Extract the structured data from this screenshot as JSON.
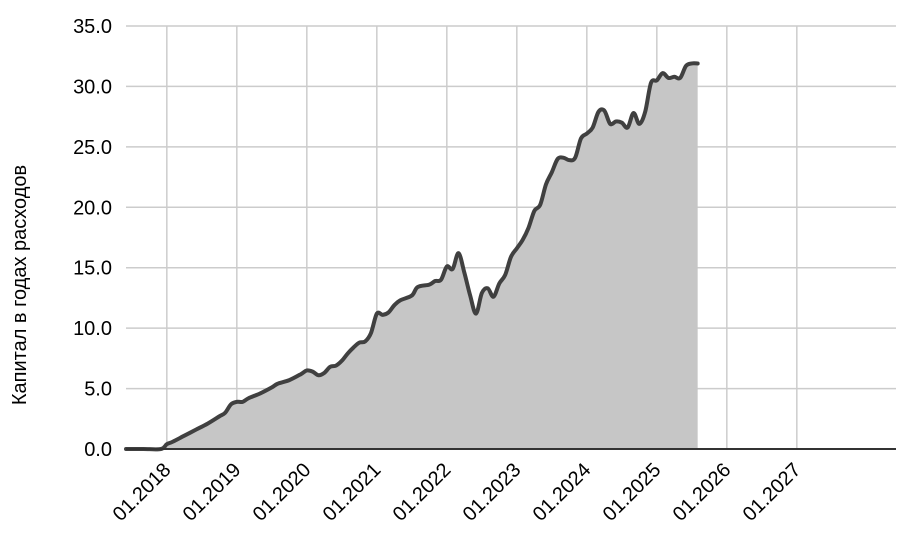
{
  "chart_data": {
    "type": "area",
    "title": "",
    "xlabel": "",
    "ylabel": "Капитал в годах расходов",
    "x_tick_labels": [
      "01.2018",
      "01.2019",
      "01.2020",
      "01.2021",
      "01.2022",
      "01.2023",
      "01.2024",
      "01.2025",
      "01.2026",
      "01.2027"
    ],
    "y_tick_labels": [
      "0.0",
      "5.0",
      "10.0",
      "15.0",
      "20.0",
      "25.0",
      "30.0",
      "35.0"
    ],
    "xlim": [
      "2017-06",
      "2028-06"
    ],
    "ylim": [
      0,
      35
    ],
    "grid": true,
    "legend": "none",
    "colors": {
      "fill": "#c6c6c6",
      "line": "#404040",
      "grid": "#cccccc",
      "axis": "#333333"
    },
    "series": [
      {
        "x": [
          "2017-06",
          "2017-09",
          "2017-12",
          "2018-01",
          "2018-02",
          "2018-04",
          "2018-06",
          "2018-08",
          "2018-10",
          "2018-11",
          "2018-12",
          "2019-01",
          "2019-02",
          "2019-03",
          "2019-05",
          "2019-07",
          "2019-08",
          "2019-10",
          "2019-12",
          "2020-01",
          "2020-02",
          "2020-03",
          "2020-04",
          "2020-05",
          "2020-06",
          "2020-07",
          "2020-08",
          "2020-09",
          "2020-10",
          "2020-11",
          "2020-12",
          "2021-01",
          "2021-02",
          "2021-03",
          "2021-04",
          "2021-05",
          "2021-07",
          "2021-08",
          "2021-10",
          "2021-11",
          "2021-12",
          "2022-01",
          "2022-02",
          "2022-03",
          "2022-04",
          "2022-05",
          "2022-06",
          "2022-07",
          "2022-08",
          "2022-09",
          "2022-10",
          "2022-11",
          "2022-12",
          "2023-01",
          "2023-02",
          "2023-03",
          "2023-04",
          "2023-05",
          "2023-06",
          "2023-07",
          "2023-08",
          "2023-09",
          "2023-10",
          "2023-11",
          "2023-12",
          "2024-01",
          "2024-02",
          "2024-03",
          "2024-04",
          "2024-05",
          "2024-06",
          "2024-07",
          "2024-08",
          "2024-09",
          "2024-10",
          "2024-11",
          "2024-12",
          "2025-01",
          "2025-02",
          "2025-03",
          "2025-04",
          "2025-05",
          "2025-06",
          "2025-07",
          "2025-08"
        ],
        "values": [
          0.0,
          0.0,
          0.0,
          0.4,
          0.6,
          1.1,
          1.6,
          2.1,
          2.7,
          3.0,
          3.7,
          3.9,
          3.9,
          4.2,
          4.6,
          5.1,
          5.4,
          5.7,
          6.2,
          6.5,
          6.4,
          6.1,
          6.3,
          6.8,
          6.9,
          7.3,
          7.9,
          8.4,
          8.8,
          8.9,
          9.6,
          11.2,
          11.1,
          11.3,
          11.9,
          12.3,
          12.7,
          13.4,
          13.6,
          13.9,
          14.0,
          15.1,
          14.9,
          16.2,
          14.6,
          12.7,
          11.2,
          12.9,
          13.3,
          12.6,
          13.7,
          14.4,
          15.9,
          16.6,
          17.3,
          18.3,
          19.7,
          20.2,
          21.9,
          22.9,
          24.0,
          24.1,
          23.9,
          24.1,
          25.7,
          26.1,
          26.6,
          27.9,
          28.0,
          26.9,
          27.1,
          27.0,
          26.6,
          27.8,
          26.9,
          27.9,
          30.3,
          30.5,
          31.1,
          30.7,
          30.8,
          30.7,
          31.7,
          31.9,
          31.9
        ]
      }
    ]
  }
}
